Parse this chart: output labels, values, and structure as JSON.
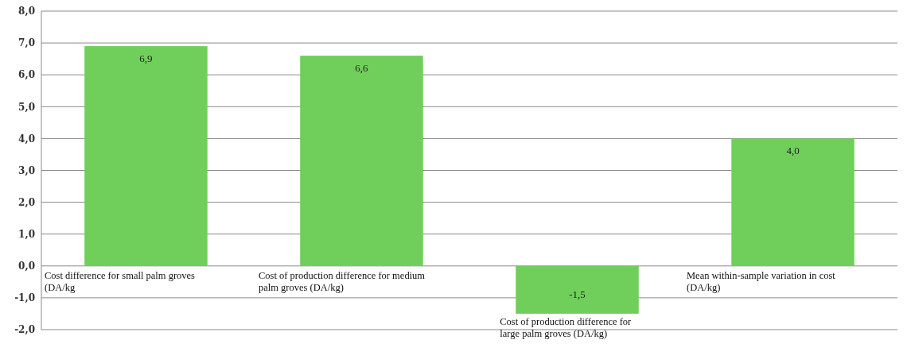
{
  "chart_data": {
    "type": "bar",
    "categories": [
      "Cost difference for small palm groves (DA/kg",
      "Cost of production difference for medium palm groves (DA/kg)",
      "Cost of production difference for large palm groves (DA/kg)",
      "Mean within-sample variation in cost (DA/kg)"
    ],
    "values": [
      6.9,
      6.6,
      -1.5,
      4.0
    ],
    "value_labels": [
      "6,9",
      "6,6",
      "-1,5",
      "4,0"
    ],
    "color": "#6fcf5a",
    "ylim": [
      -2,
      8
    ],
    "yticks": [
      {
        "value": -2,
        "label": "-2,0"
      },
      {
        "value": -1,
        "label": "-1,0"
      },
      {
        "value": 0,
        "label": "0,0"
      },
      {
        "value": 1,
        "label": "1,0"
      },
      {
        "value": 2,
        "label": "2,0"
      },
      {
        "value": 3,
        "label": "3,0"
      },
      {
        "value": 4,
        "label": "4,0"
      },
      {
        "value": 5,
        "label": "5,0"
      },
      {
        "value": 6,
        "label": "6,0"
      },
      {
        "value": 7,
        "label": "7,0"
      },
      {
        "value": 8,
        "label": "8,0"
      }
    ],
    "grid": true
  }
}
